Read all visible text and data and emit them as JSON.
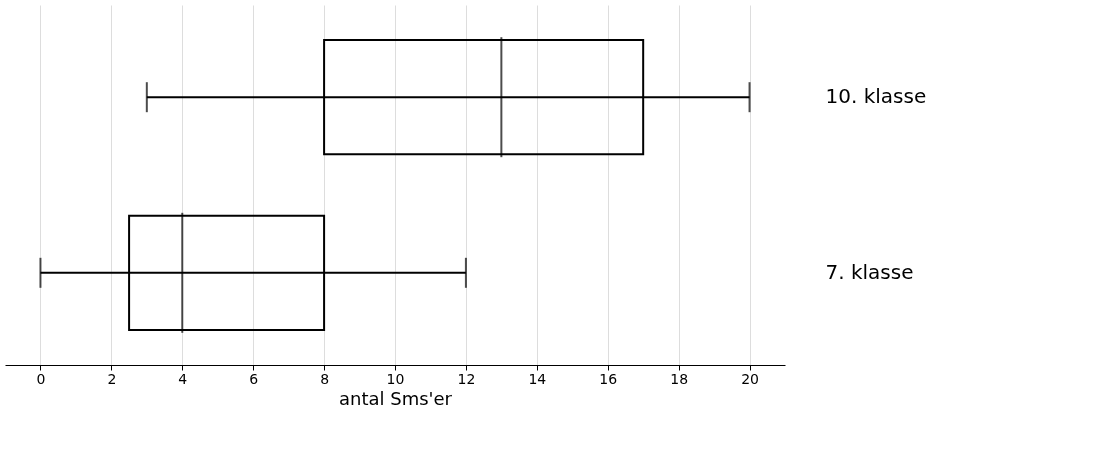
{
  "chart_data": {
    "type": "box",
    "orientation": "horizontal",
    "categories": [
      "10. klasse",
      "7. klasse"
    ],
    "boxes": [
      {
        "low": 3,
        "q1": 8,
        "median": 13,
        "q3": 17,
        "high": 20
      },
      {
        "low": 0,
        "q1": 2.5,
        "median": 4,
        "q3": 8,
        "high": 12
      }
    ],
    "xlabel": "antal Sms'er",
    "xlim": [
      -1,
      21
    ],
    "xticks": [
      0,
      2,
      4,
      6,
      8,
      10,
      12,
      14,
      16,
      18,
      20
    ],
    "grid": true
  }
}
